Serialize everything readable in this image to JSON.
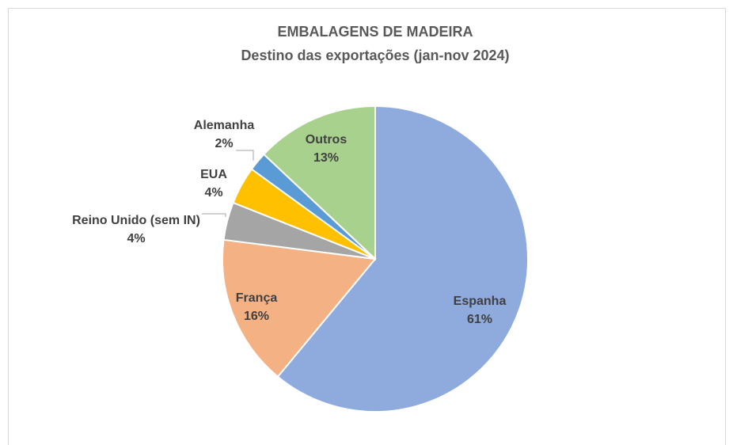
{
  "chart_data": {
    "type": "pie",
    "title": "EMBALAGENS DE MADEIRA",
    "subtitle": "Destino das exportações (jan-nov 2024)",
    "categories": [
      "Espanha",
      "França",
      "Reino Unido (sem IN)",
      "EUA",
      "Alemanha",
      "Outros"
    ],
    "values": [
      61,
      16,
      4,
      4,
      2,
      13
    ],
    "value_labels": [
      "61%",
      "16%",
      "4%",
      "4%",
      "2%",
      "13%"
    ],
    "colors": [
      "#8faadc",
      "#f4b183",
      "#a5a5a5",
      "#ffc000",
      "#5b9bd5",
      "#a9d18e"
    ]
  }
}
